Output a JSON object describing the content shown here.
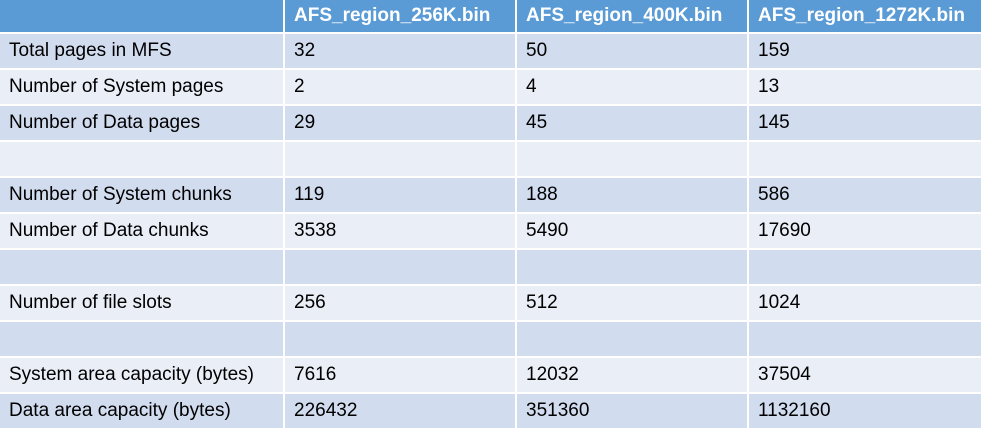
{
  "table": {
    "columns": [
      "",
      "AFS_region_256K.bin",
      "AFS_region_400K.bin",
      "AFS_region_1272K.bin"
    ],
    "rows": [
      [
        "Total pages in MFS",
        "32",
        "50",
        "159"
      ],
      [
        "Number of System pages",
        "2",
        "4",
        "13"
      ],
      [
        "Number of Data pages",
        "29",
        "45",
        "145"
      ],
      [
        "",
        "",
        "",
        ""
      ],
      [
        "Number of System chunks",
        "119",
        "188",
        "586"
      ],
      [
        "Number of Data chunks",
        "3538",
        "5490",
        "17690"
      ],
      [
        "",
        "",
        "",
        ""
      ],
      [
        "Number of file slots",
        "256",
        "512",
        "1024"
      ],
      [
        "",
        "",
        "",
        ""
      ],
      [
        "System area capacity (bytes)",
        "7616",
        "12032",
        "37504"
      ],
      [
        "Data area capacity (bytes)",
        "226432",
        "351360",
        "1132160"
      ]
    ]
  },
  "colors": {
    "header_bg": "#5b9bd5",
    "header_text": "#ffffff",
    "row_odd_bg": "#d2dcef",
    "row_even_bg": "#e9eef7"
  }
}
